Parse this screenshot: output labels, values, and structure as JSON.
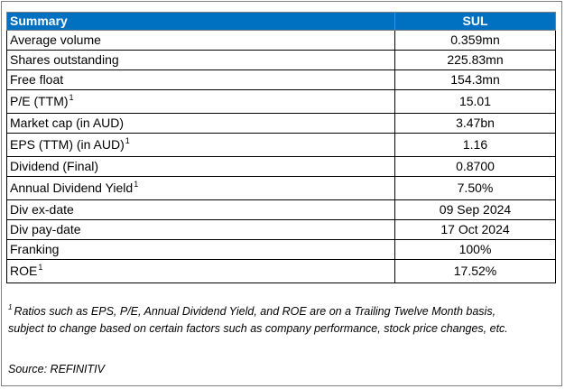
{
  "table": {
    "header": {
      "label": "Summary",
      "ticker": "SUL"
    },
    "rows": [
      {
        "label": "Average volume",
        "note": "",
        "value": "0.359mn"
      },
      {
        "label": "Shares outstanding",
        "note": "",
        "value": "225.83mn"
      },
      {
        "label": "Free float",
        "note": "",
        "value": "154.3mn"
      },
      {
        "label": "P/E (TTM)",
        "note": "1",
        "value": "15.01"
      },
      {
        "label": "Market cap (in AUD)",
        "note": "",
        "value": "3.47bn"
      },
      {
        "label": "EPS (TTM) (in AUD)",
        "note": "1",
        "value": "1.16"
      },
      {
        "label": "Dividend (Final)",
        "note": "",
        "value": "0.8700"
      },
      {
        "label": "Annual Dividend Yield",
        "note": "1",
        "value": "7.50%"
      },
      {
        "label": "Div ex-date",
        "note": "",
        "value": "09 Sep 2024"
      },
      {
        "label": "Div pay-date",
        "note": "",
        "value": "17 Oct 2024"
      },
      {
        "label": "Franking",
        "note": "",
        "value": "100%"
      },
      {
        "label": "ROE",
        "note": "1",
        "value": "17.52%"
      }
    ]
  },
  "footnote": {
    "marker": "1",
    "line1": "Ratios such as EPS, P/E, Annual Dividend Yield, and ROE are on a Trailing Twelve Month basis,",
    "line2": "subject to change based on certain factors such as company performance, stock price changes, etc."
  },
  "source": "Source: REFINITIV",
  "colors": {
    "header_bg": "#0070c0",
    "header_text": "#ffffff",
    "border": "#000000",
    "frame": "#7f7f7f"
  }
}
